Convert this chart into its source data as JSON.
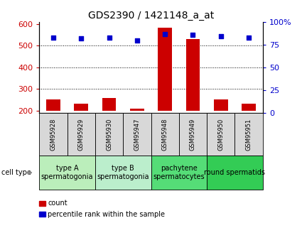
{
  "title": "GDS2390 / 1421148_a_at",
  "samples": [
    "GSM95928",
    "GSM95929",
    "GSM95930",
    "GSM95947",
    "GSM95948",
    "GSM95949",
    "GSM95950",
    "GSM95951"
  ],
  "count_values": [
    253,
    232,
    257,
    210,
    584,
    530,
    252,
    231
  ],
  "percentile_values": [
    83,
    82,
    83,
    80,
    87,
    86,
    84,
    83
  ],
  "ylim_left": [
    190,
    610
  ],
  "ylim_right": [
    0,
    100
  ],
  "yticks_left": [
    200,
    300,
    400,
    500,
    600
  ],
  "yticks_right": [
    0,
    25,
    50,
    75,
    100
  ],
  "ytick_labels_right": [
    "0",
    "25",
    "50",
    "75",
    "100%"
  ],
  "bar_color": "#cc0000",
  "dot_color": "#0000cc",
  "bar_baseline": 200,
  "groups": [
    {
      "label": "type A\nspermatogonia",
      "start": 0,
      "end": 2,
      "color": "#bbeebb"
    },
    {
      "label": "type B\nspermatogonia",
      "start": 2,
      "end": 4,
      "color": "#bbeecc"
    },
    {
      "label": "pachytene\nspermatocytes",
      "start": 4,
      "end": 6,
      "color": "#55dd77"
    },
    {
      "label": "round spermatids",
      "start": 6,
      "end": 8,
      "color": "#33cc55"
    }
  ],
  "legend_items": [
    {
      "color": "#cc0000",
      "label": "count"
    },
    {
      "color": "#0000cc",
      "label": "percentile rank within the sample"
    }
  ],
  "cell_type_label": "cell type",
  "title_fontsize": 10,
  "tick_fontsize": 8,
  "sample_fontsize": 6,
  "group_label_fontsize": 7
}
